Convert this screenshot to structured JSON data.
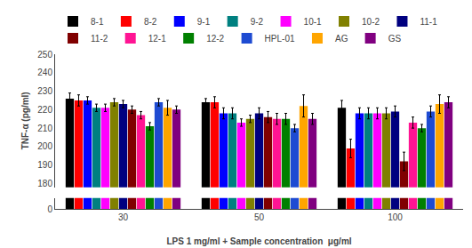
{
  "chart_data": {
    "type": "bar",
    "categories": [
      "30",
      "50",
      "100"
    ],
    "series": [
      {
        "name": "8-1",
        "color": "#000000",
        "values": [
          226,
          224,
          221
        ],
        "errors": [
          3,
          2,
          4
        ]
      },
      {
        "name": "8-2",
        "color": "#ff0000",
        "values": [
          225,
          224,
          199
        ],
        "errors": [
          3,
          3,
          5
        ]
      },
      {
        "name": "9-1",
        "color": "#0000ff",
        "values": [
          225,
          218,
          218
        ],
        "errors": [
          2,
          3,
          3
        ]
      },
      {
        "name": "9-2",
        "color": "#008080",
        "values": [
          221,
          218,
          218
        ],
        "errors": [
          2,
          3,
          3
        ]
      },
      {
        "name": "10-1",
        "color": "#ff00ff",
        "values": [
          221,
          213,
          218
        ],
        "errors": [
          2,
          2,
          3
        ]
      },
      {
        "name": "10-2",
        "color": "#808000",
        "values": [
          224,
          215,
          218
        ],
        "errors": [
          2,
          2,
          3
        ]
      },
      {
        "name": "11-1",
        "color": "#000080",
        "values": [
          223,
          218,
          219
        ],
        "errors": [
          2,
          3,
          3
        ]
      },
      {
        "name": "11-2",
        "color": "#800000",
        "values": [
          220,
          216,
          192
        ],
        "errors": [
          2,
          3,
          5
        ]
      },
      {
        "name": "12-1",
        "color": "#ff1493",
        "values": [
          217,
          215,
          213
        ],
        "errors": [
          2,
          3,
          3
        ]
      },
      {
        "name": "12-2",
        "color": "#008000",
        "values": [
          211,
          215,
          210
        ],
        "errors": [
          2,
          3,
          2
        ]
      },
      {
        "name": "HPL-01",
        "color": "#1e4bd2",
        "values": [
          224,
          210,
          219
        ],
        "errors": [
          2,
          2,
          3
        ]
      },
      {
        "name": "AG",
        "color": "#ffa500",
        "values": [
          221,
          222,
          223
        ],
        "errors": [
          4,
          6,
          5
        ]
      },
      {
        "name": "GS",
        "color": "#800080",
        "values": [
          220,
          215,
          224
        ],
        "errors": [
          2,
          3,
          3
        ]
      }
    ],
    "ylabel": "TNF-α (pg/ml)",
    "xlabel": "LPS 1 mg/ml + Sample concentration  μg/ml",
    "ylim": [
      178,
      250
    ],
    "yticks": [
      180,
      190,
      200,
      210,
      220,
      230,
      240,
      250
    ],
    "y2lim": [
      0,
      6
    ],
    "y2ticks": [
      0
    ],
    "grid": false,
    "legend": "upper left"
  }
}
